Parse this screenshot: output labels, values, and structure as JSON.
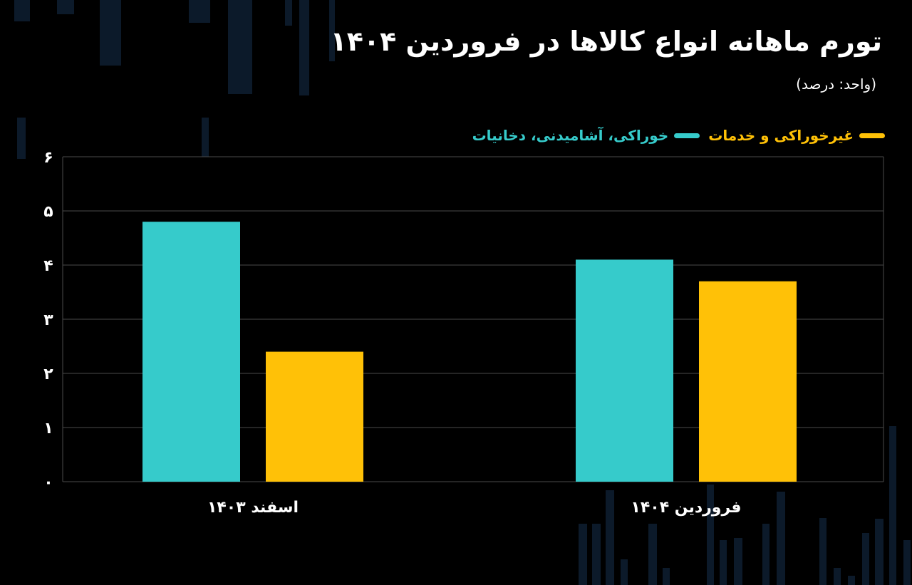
{
  "header": {
    "title": "تورم ماهانه انواع کالاها در فروردین ۱۴۰۴",
    "unit_note": "(واحد: درصد)"
  },
  "colors": {
    "background": "#000000",
    "food": "#36CBCB",
    "nonfood": "#FFC107",
    "grid": "#4a4a4a",
    "deco": "#0c1a2a"
  },
  "chart_data": {
    "type": "bar",
    "categories": [
      "اسفند ۱۴۰۳",
      "فروردین ۱۴۰۴"
    ],
    "series": [
      {
        "name": "خوراکی، آشامیدنی، دخانیات",
        "color": "#36CBCB",
        "values": [
          4.8,
          4.1
        ]
      },
      {
        "name": "غیرخوراکی و خدمات",
        "color": "#FFC107",
        "values": [
          2.4,
          3.7
        ]
      }
    ],
    "y_ticks": [
      "۰",
      "۱",
      "۲",
      "۳",
      "۴",
      "۵",
      "۶"
    ],
    "ylim": [
      0,
      6
    ],
    "grid": true,
    "legend_position": "top-right"
  }
}
